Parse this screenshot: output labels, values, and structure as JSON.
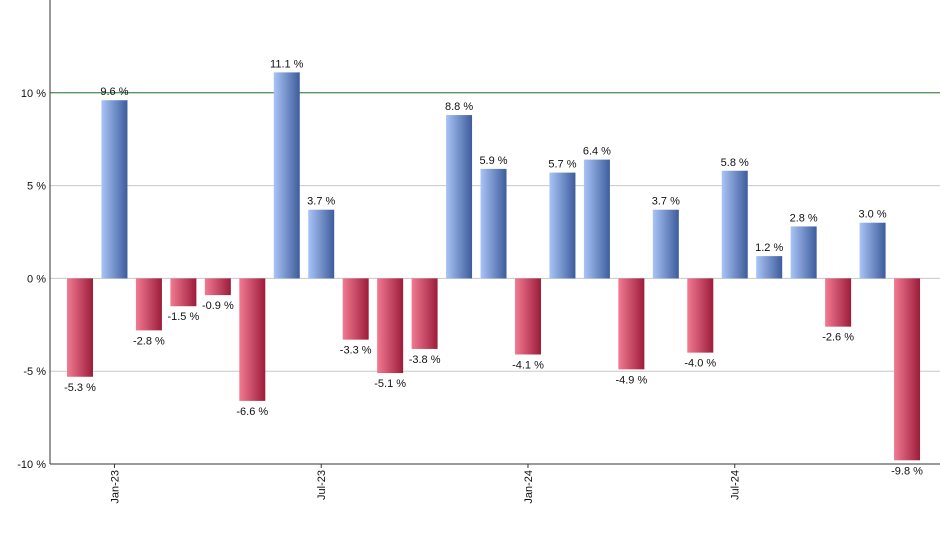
{
  "chart_data": {
    "type": "bar",
    "categories": [
      null,
      "Jan-23",
      null,
      null,
      null,
      null,
      null,
      "Jul-23",
      null,
      null,
      null,
      null,
      null,
      "Jan-24",
      null,
      null,
      null,
      null,
      null,
      "Jul-24",
      null,
      null,
      null,
      null,
      null
    ],
    "values": [
      -5.3,
      9.6,
      -2.8,
      -1.5,
      -0.9,
      -6.6,
      11.1,
      3.7,
      -3.3,
      -5.1,
      -3.8,
      8.8,
      5.9,
      -4.1,
      5.7,
      6.4,
      -4.9,
      3.7,
      -4.0,
      5.8,
      1.2,
      2.8,
      -2.6,
      3.0,
      -9.8
    ],
    "value_labels": [
      "-5.3 %",
      "9.6 %",
      "-2.8 %",
      "-1.5 %",
      "-0.9 %",
      "-6.6 %",
      "11.1 %",
      "3.7 %",
      "-3.3 %",
      "-5.1 %",
      "-3.8 %",
      "8.8 %",
      "5.9 %",
      "-4.1 %",
      "5.7 %",
      "6.4 %",
      "-4.9 %",
      "3.7 %",
      "-4.0 %",
      "5.8 %",
      "1.2 %",
      "2.8 %",
      "-2.6 %",
      "3.0 %",
      "-9.8 %"
    ],
    "positive_colors": [
      "#a9c4f6",
      "#3d5c9c"
    ],
    "negative_colors": [
      "#f27a92",
      "#9c1c3a"
    ],
    "ylim": [
      -10,
      15
    ],
    "yticks": [
      {
        "value": -10,
        "label": "-10 %"
      },
      {
        "value": -5,
        "label": "-5 %"
      },
      {
        "value": 0,
        "label": "0 %"
      },
      {
        "value": 5,
        "label": "5 %"
      },
      {
        "value": 10,
        "label": "10 %"
      }
    ],
    "grid": true,
    "reference_line": 10,
    "reference_color": "#2e7d32"
  }
}
